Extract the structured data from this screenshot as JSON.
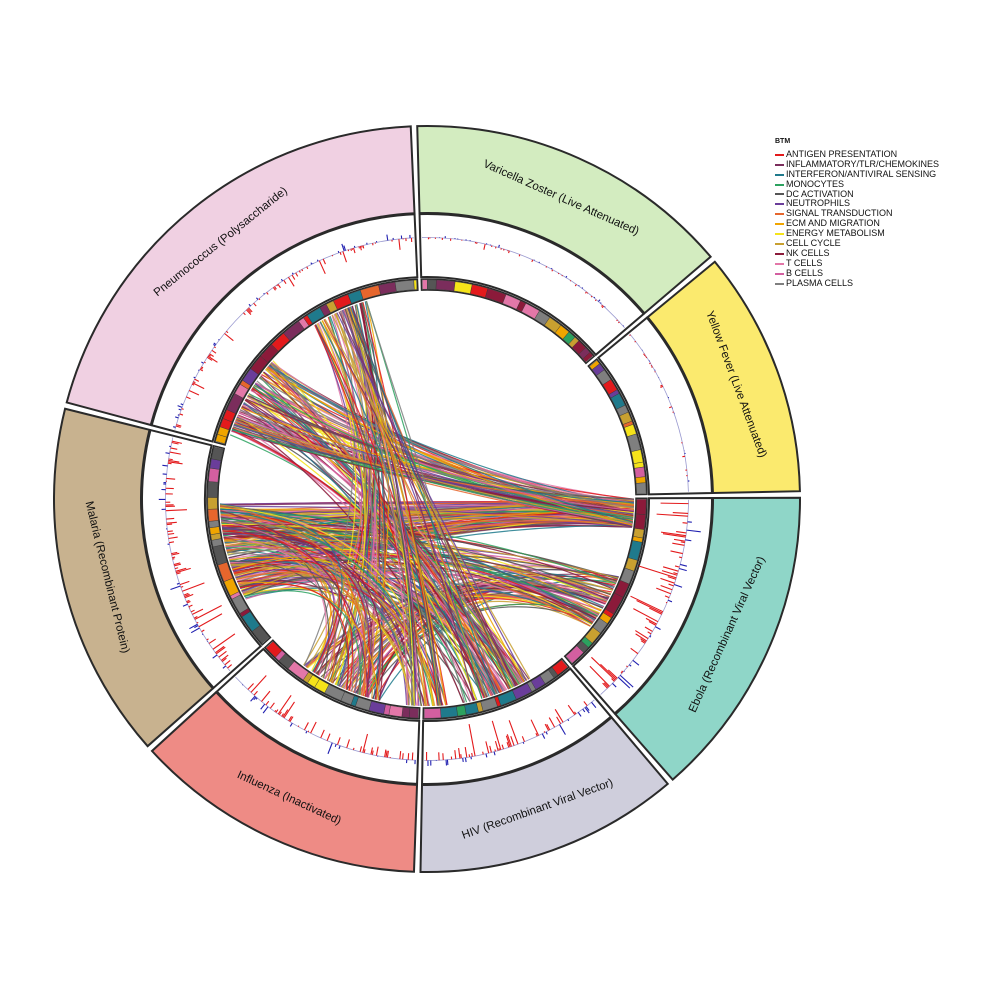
{
  "chart_data": {
    "type": "chord",
    "legend": {
      "title": "BTM",
      "placement": "top-right",
      "items": [
        {
          "label": "ANTIGEN PRESENTATION",
          "color": "#e31a1c"
        },
        {
          "label": "INFLAMMATORY/TLR/CHEMOKINES",
          "color": "#7b2d5c"
        },
        {
          "label": "INTERFERON/ANTIVIRAL SENSING",
          "color": "#1f7a8c"
        },
        {
          "label": "MONOCYTES",
          "color": "#2ca25f"
        },
        {
          "label": "DC ACTIVATION",
          "color": "#555555"
        },
        {
          "label": "NEUTROPHILS",
          "color": "#6a3d9a"
        },
        {
          "label": "SIGNAL TRANSDUCTION",
          "color": "#e6662d"
        },
        {
          "label": "ECM AND MIGRATION",
          "color": "#f0a500"
        },
        {
          "label": "ENERGY METABOLISM",
          "color": "#f5e31a"
        },
        {
          "label": "CELL CYCLE",
          "color": "#c8a030"
        },
        {
          "label": "NK CELLS",
          "color": "#8b1a3a"
        },
        {
          "label": "T CELLS",
          "color": "#e377a8"
        },
        {
          "label": "B CELLS",
          "color": "#d35fa0"
        },
        {
          "label": "PLASMA CELLS",
          "color": "#7f7f7f"
        }
      ]
    },
    "sectors": [
      {
        "label": "Varicella Zoster (Live Attenuated)",
        "color": "#d3ecc0"
      },
      {
        "label": "Yellow Fever (Live Attenuated)",
        "color": "#fbea6e"
      },
      {
        "label": "Ebola (Recombinant Viral Vector)",
        "color": "#8fd6c8"
      },
      {
        "label": "HIV (Recombinant Viral Vector)",
        "color": "#cfcedc"
      },
      {
        "label": "Influenza (Inactivated)",
        "color": "#ee8b85"
      },
      {
        "label": "Malaria (Recombinant Protein)",
        "color": "#c8b28f"
      },
      {
        "label": "Pneumococcus (Polysaccharide)",
        "color": "#f0d0e2"
      }
    ],
    "track_colors": {
      "positive": "#e31a1c",
      "negative": "#2020b0",
      "baseline": "#9a9ad0"
    }
  }
}
